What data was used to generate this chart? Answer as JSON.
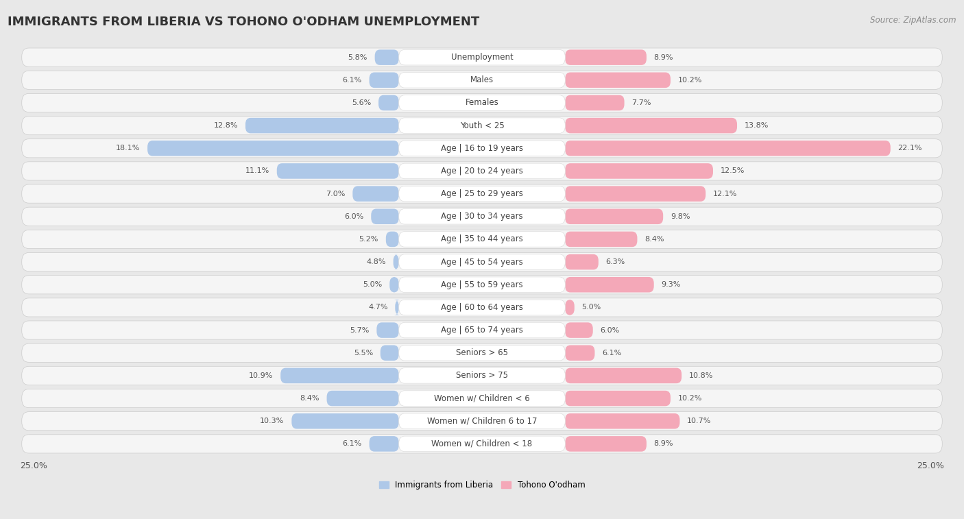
{
  "title": "IMMIGRANTS FROM LIBERIA VS TOHONO O'ODHAM UNEMPLOYMENT",
  "source": "Source: ZipAtlas.com",
  "categories": [
    "Unemployment",
    "Males",
    "Females",
    "Youth < 25",
    "Age | 16 to 19 years",
    "Age | 20 to 24 years",
    "Age | 25 to 29 years",
    "Age | 30 to 34 years",
    "Age | 35 to 44 years",
    "Age | 45 to 54 years",
    "Age | 55 to 59 years",
    "Age | 60 to 64 years",
    "Age | 65 to 74 years",
    "Seniors > 65",
    "Seniors > 75",
    "Women w/ Children < 6",
    "Women w/ Children 6 to 17",
    "Women w/ Children < 18"
  ],
  "left_values": [
    5.8,
    6.1,
    5.6,
    12.8,
    18.1,
    11.1,
    7.0,
    6.0,
    5.2,
    4.8,
    5.0,
    4.7,
    5.7,
    5.5,
    10.9,
    8.4,
    10.3,
    6.1
  ],
  "right_values": [
    8.9,
    10.2,
    7.7,
    13.8,
    22.1,
    12.5,
    12.1,
    9.8,
    8.4,
    6.3,
    9.3,
    5.0,
    6.0,
    6.1,
    10.8,
    10.2,
    10.7,
    8.9
  ],
  "left_color": "#aec8e8",
  "right_color": "#f4a8b8",
  "left_label": "Immigrants from Liberia",
  "right_label": "Tohono O'odham",
  "axis_max": 25.0,
  "background_color": "#e8e8e8",
  "row_bg_color": "#f5f5f5",
  "label_pill_color": "#ffffff",
  "title_fontsize": 13,
  "source_fontsize": 8.5,
  "label_fontsize": 8.5,
  "cat_fontsize": 8.5,
  "value_fontsize": 8,
  "axis_label_fontsize": 9
}
